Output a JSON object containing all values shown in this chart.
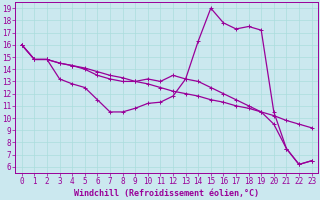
{
  "xlabel": "Windchill (Refroidissement éolien,°C)",
  "background_color": "#cbe8ef",
  "line_color": "#990099",
  "grid_color": "#aadddd",
  "xlim": [
    -0.5,
    23.5
  ],
  "ylim": [
    5.5,
    19.5
  ],
  "xticks": [
    0,
    1,
    2,
    3,
    4,
    5,
    6,
    7,
    8,
    9,
    10,
    11,
    12,
    13,
    14,
    15,
    16,
    17,
    18,
    19,
    20,
    21,
    22,
    23
  ],
  "yticks": [
    6,
    7,
    8,
    9,
    10,
    11,
    12,
    13,
    14,
    15,
    16,
    17,
    18,
    19
  ],
  "line1_x": [
    0,
    1,
    2,
    3,
    4,
    5,
    6,
    7,
    8,
    9,
    10,
    11,
    12,
    13,
    14,
    15,
    16,
    17,
    18,
    19,
    20,
    21,
    22,
    23
  ],
  "line1_y": [
    16,
    14.8,
    14.8,
    14.5,
    14.3,
    14.1,
    13.8,
    13.5,
    13.3,
    13.0,
    12.8,
    12.5,
    12.2,
    12.0,
    11.8,
    11.5,
    11.3,
    11.0,
    10.8,
    10.5,
    10.2,
    9.8,
    9.5,
    9.2
  ],
  "line2_x": [
    0,
    1,
    2,
    3,
    4,
    5,
    6,
    7,
    8,
    9,
    10,
    11,
    12,
    13,
    14,
    15,
    16,
    17,
    18,
    19,
    20,
    21,
    22,
    23
  ],
  "line2_y": [
    16,
    14.8,
    14.8,
    13.2,
    12.8,
    12.5,
    11.5,
    10.5,
    10.5,
    10.8,
    11.2,
    11.3,
    11.8,
    13.2,
    16.3,
    19.0,
    17.8,
    17.3,
    17.5,
    17.2,
    10.5,
    7.5,
    6.2,
    6.5
  ],
  "line3_x": [
    0,
    1,
    2,
    3,
    4,
    5,
    6,
    7,
    8,
    9,
    10,
    11,
    12,
    13,
    14,
    15,
    16,
    17,
    18,
    19,
    20,
    21,
    22,
    23
  ],
  "line3_y": [
    16,
    14.8,
    14.8,
    14.5,
    14.3,
    14.0,
    13.5,
    13.2,
    13.0,
    13.0,
    13.2,
    13.0,
    13.5,
    13.2,
    13.0,
    12.5,
    12.0,
    11.5,
    11.0,
    10.5,
    9.5,
    7.5,
    6.2,
    6.5
  ],
  "marker_size": 2.5,
  "linewidth": 0.9,
  "fontsize_xlabel": 6,
  "fontsize_ticks": 5.5
}
